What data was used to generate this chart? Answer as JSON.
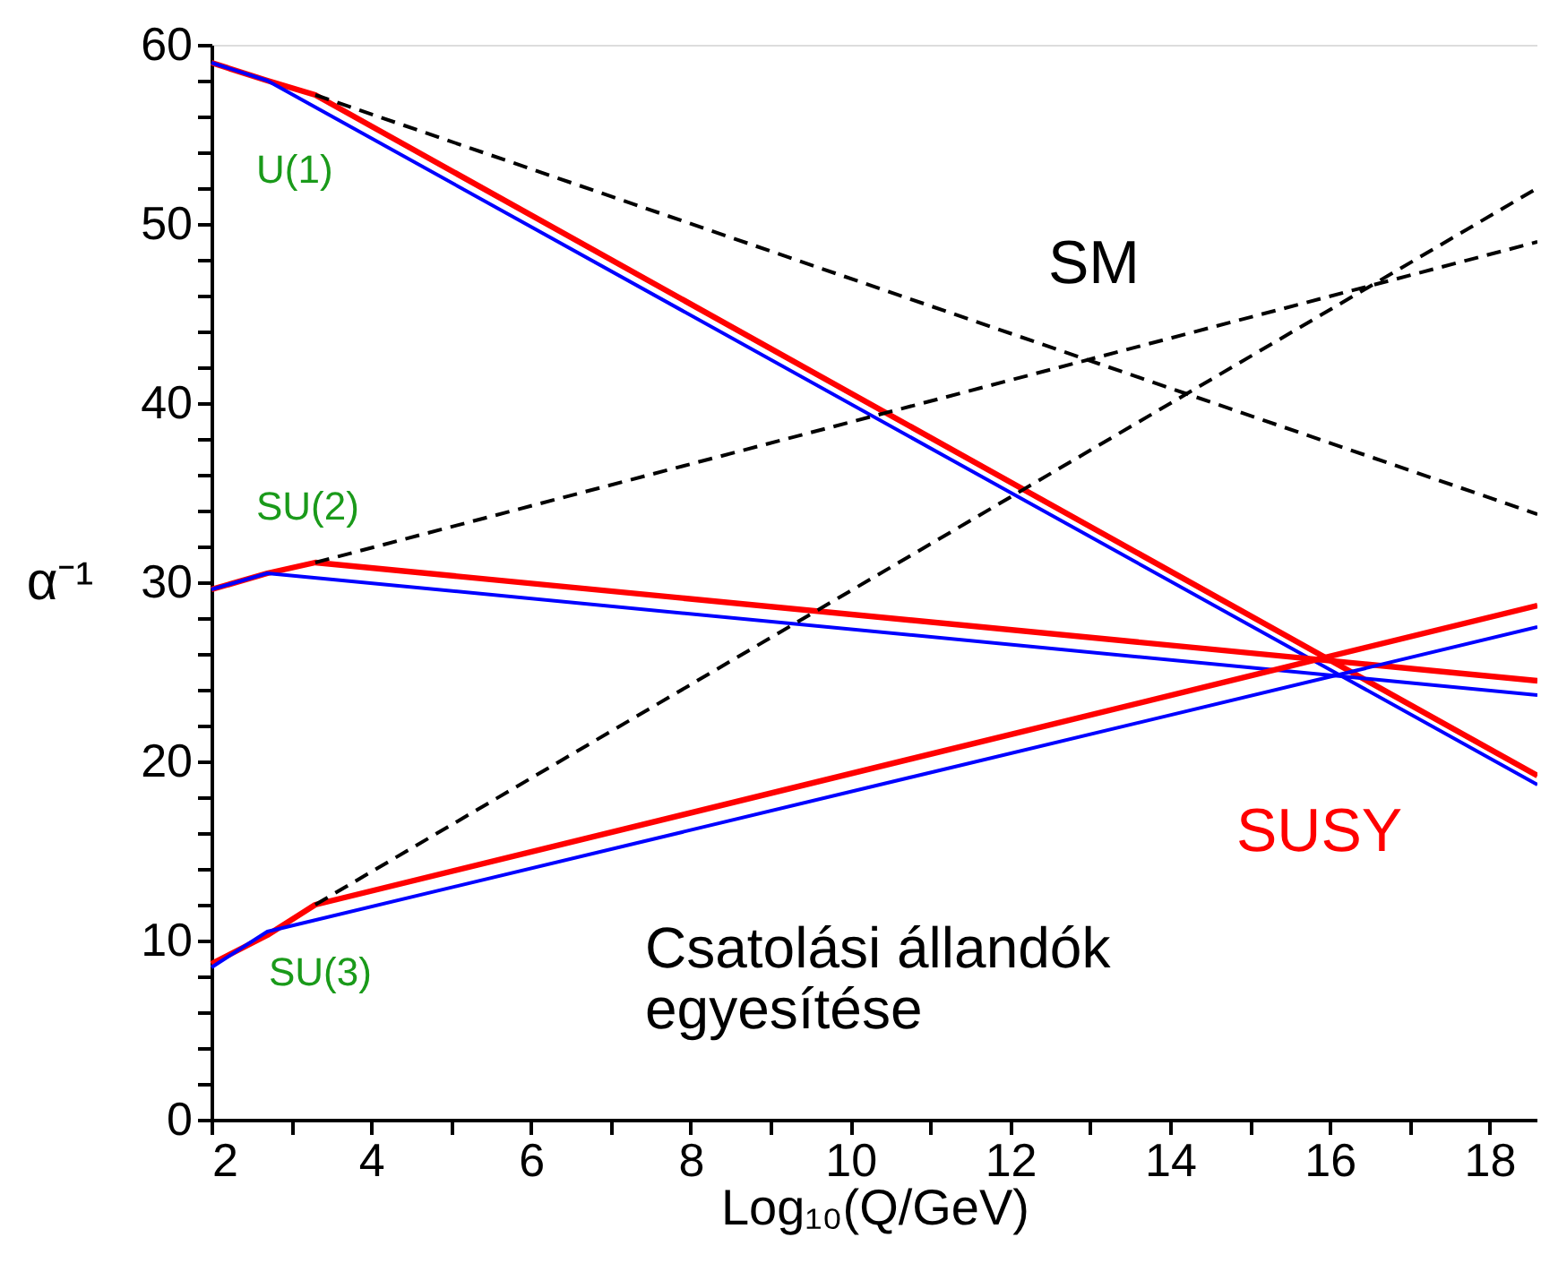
{
  "chart_data": {
    "type": "line",
    "xlabel": "Log₁₀(Q/GeV)",
    "ylabel": "α⁻¹",
    "xlim": [
      2,
      18.6
    ],
    "ylim": [
      0,
      60
    ],
    "xticks": [
      2,
      {
        "value": 3,
        "label": null
      },
      4,
      {
        "value": 5,
        "label": null
      },
      6,
      {
        "value": 7,
        "label": null
      },
      8,
      {
        "value": 9,
        "label": null
      },
      10,
      {
        "value": 11,
        "label": null
      },
      12,
      {
        "value": 13,
        "label": null
      },
      14,
      {
        "value": 15,
        "label": null
      },
      16,
      {
        "value": 17,
        "label": null
      },
      18
    ],
    "yticks": [
      0,
      {
        "value": 2,
        "label": null
      },
      {
        "value": 4,
        "label": null
      },
      {
        "value": 6,
        "label": null
      },
      {
        "value": 8,
        "label": null
      },
      10,
      {
        "value": 12,
        "label": null
      },
      {
        "value": 14,
        "label": null
      },
      {
        "value": 16,
        "label": null
      },
      {
        "value": 18,
        "label": null
      },
      20,
      {
        "value": 22,
        "label": null
      },
      {
        "value": 24,
        "label": null
      },
      {
        "value": 26,
        "label": null
      },
      {
        "value": 28,
        "label": null
      },
      30,
      {
        "value": 32,
        "label": null
      },
      {
        "value": 34,
        "label": null
      },
      {
        "value": 36,
        "label": null
      },
      {
        "value": 38,
        "label": null
      },
      40,
      {
        "value": 42,
        "label": null
      },
      {
        "value": 44,
        "label": null
      },
      {
        "value": 46,
        "label": null
      },
      {
        "value": 48,
        "label": null
      },
      50,
      {
        "value": 52,
        "label": null
      },
      {
        "value": 54,
        "label": null
      },
      {
        "value": 56,
        "label": null
      },
      {
        "value": 58,
        "label": null
      },
      60
    ],
    "grid": false,
    "series": [
      {
        "color": "#000000",
        "line_style": "dashed",
        "x": [
          3.3,
          18.6
        ],
        "values": [
          57.2,
          33.8
        ]
      },
      {
        "color": "#000000",
        "line_style": "dashed",
        "x": [
          3.3,
          18.6
        ],
        "values": [
          31.1,
          49
        ]
      },
      {
        "color": "#000000",
        "line_style": "dashed",
        "x": [
          3.3,
          18.6
        ],
        "values": [
          12.0,
          52
        ]
      },
      {
        "color": "#ff0000",
        "line_style": "solid",
        "x": [
          2,
          2.7,
          3.3,
          18.6
        ],
        "values": [
          59,
          58,
          57.2,
          19.2
        ]
      },
      {
        "color": "#0000ff",
        "line_style": "solid",
        "x": [
          2,
          2.7,
          18.6
        ],
        "values": [
          59,
          58,
          18.7
        ]
      },
      {
        "color": "#ff0000",
        "line_style": "solid",
        "x": [
          2,
          2.7,
          3.3,
          18.6
        ],
        "values": [
          29.6,
          30.5,
          31.1,
          24.5
        ]
      },
      {
        "color": "#0000ff",
        "line_style": "solid",
        "x": [
          2,
          2.7,
          18.6
        ],
        "values": [
          29.6,
          30.5,
          23.7
        ]
      },
      {
        "color": "#ff0000",
        "line_style": "solid",
        "x": [
          2,
          2.7,
          3.3,
          18.6
        ],
        "values": [
          8.7,
          10.3,
          12.0,
          28.7
        ]
      },
      {
        "color": "#0000ff",
        "line_style": "solid",
        "x": [
          2,
          2.7,
          18.6
        ],
        "values": [
          8.5,
          10.5,
          27.5
        ]
      }
    ],
    "annotations": [
      "U(1)",
      "SU(2)",
      "SU(3)",
      "SM",
      "SUSY",
      "Csatolási állandók\negyesítése"
    ]
  }
}
